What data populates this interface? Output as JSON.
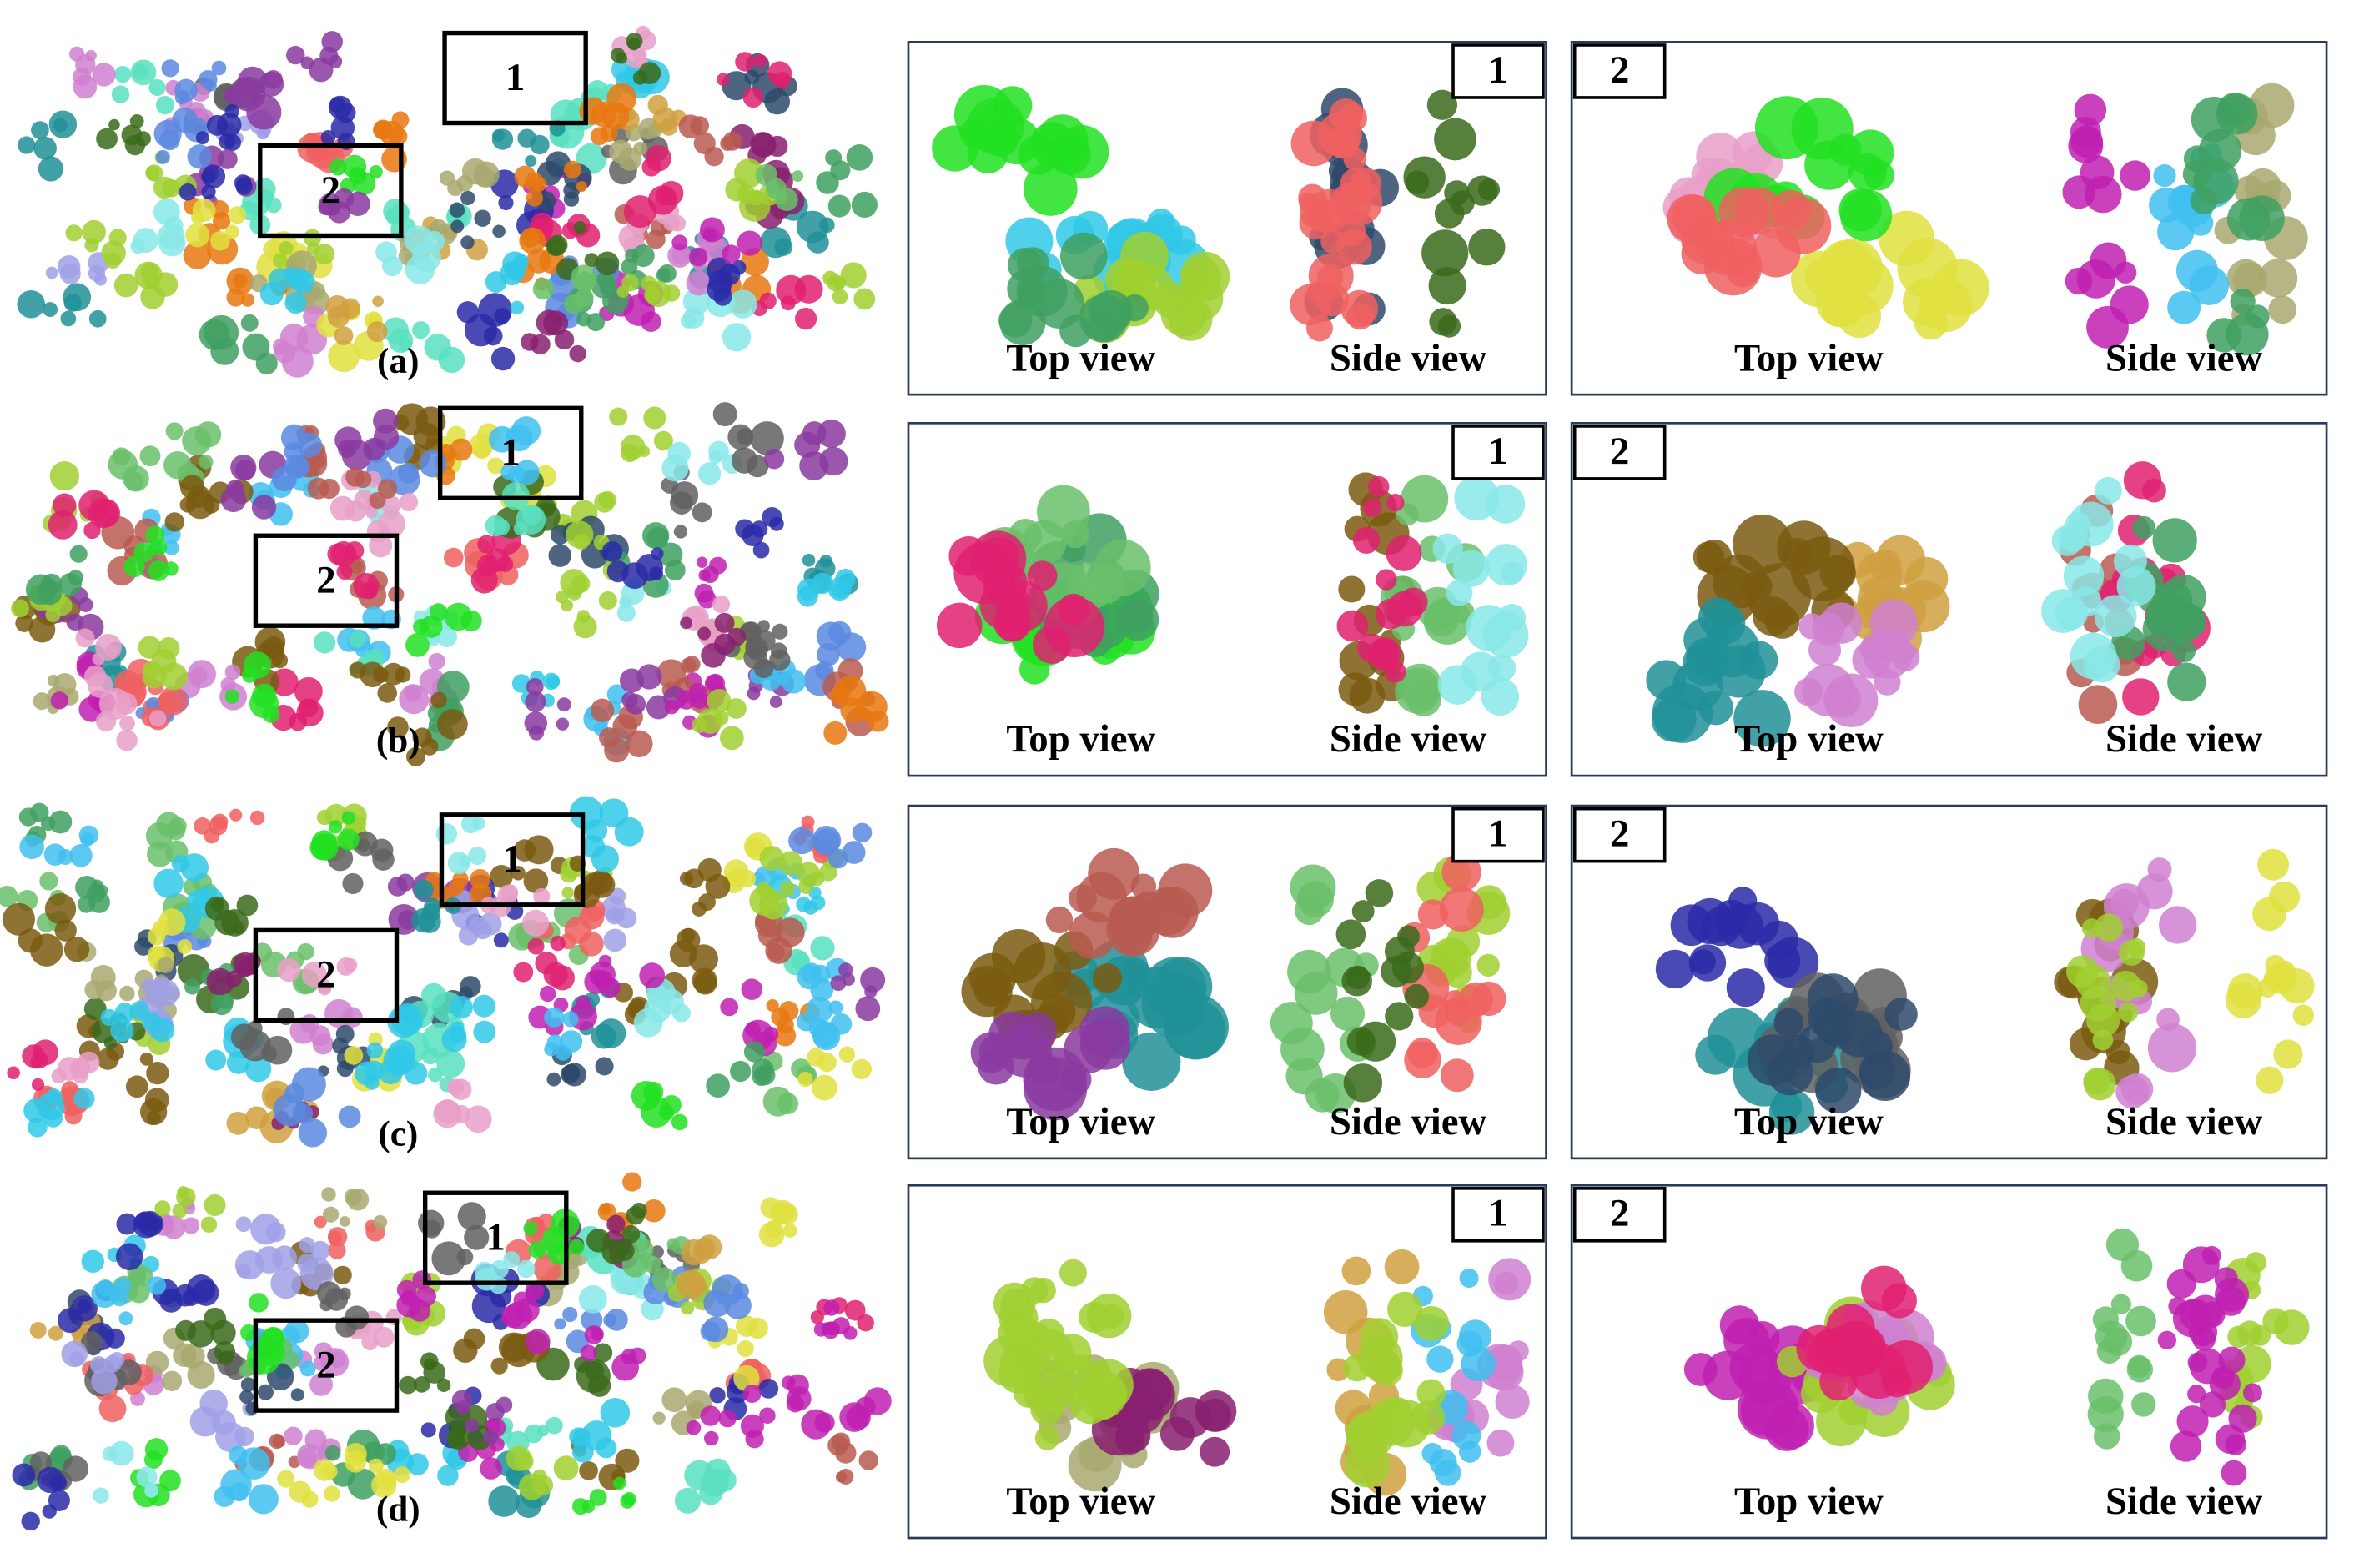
{
  "rows": [
    {
      "label": "(a)",
      "map_boxes": [
        "1",
        "2"
      ],
      "panels": [
        {
          "number": "1",
          "top_caption": "Top view",
          "side_caption": "Side view"
        },
        {
          "number": "2",
          "top_caption": "Top view",
          "side_caption": "Side view"
        }
      ]
    },
    {
      "label": "(b)",
      "map_boxes": [
        "1",
        "2"
      ],
      "panels": [
        {
          "number": "1",
          "top_caption": "Top view",
          "side_caption": "Side view"
        },
        {
          "number": "2",
          "top_caption": "Top view",
          "side_caption": "Side view"
        }
      ]
    },
    {
      "label": "(c)",
      "map_boxes": [
        "1",
        "2"
      ],
      "panels": [
        {
          "number": "1",
          "top_caption": "Top view",
          "side_caption": "Side view"
        },
        {
          "number": "2",
          "top_caption": "Top view",
          "side_caption": "Side view"
        }
      ]
    },
    {
      "label": "(d)",
      "map_boxes": [
        "1",
        "2"
      ],
      "panels": [
        {
          "number": "1",
          "top_caption": "Top view",
          "side_caption": "Side view"
        },
        {
          "number": "2",
          "top_caption": "Top view",
          "side_caption": "Side view"
        }
      ]
    }
  ]
}
